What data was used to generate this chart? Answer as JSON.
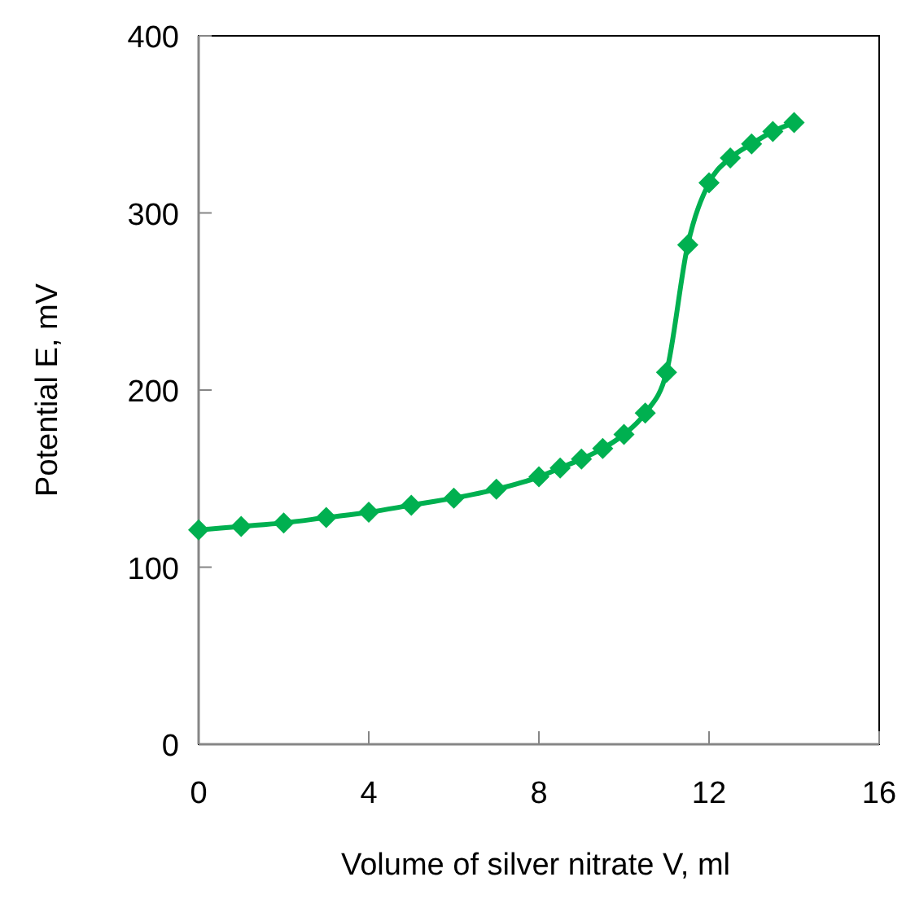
{
  "chart_data": {
    "type": "line",
    "xlabel": "Volume of silver nitrate V, ml",
    "ylabel": "Potential E, mV",
    "x": [
      0,
      1,
      2,
      3,
      4,
      5,
      6,
      7,
      8,
      8.5,
      9,
      9.5,
      10,
      10.5,
      11,
      11.5,
      12,
      12.5,
      13,
      13.5,
      14
    ],
    "series": [
      {
        "color": "#00b050",
        "values": [
          121,
          123,
          125,
          128,
          131,
          135,
          139,
          144,
          151,
          156,
          161,
          167,
          175,
          187,
          210,
          282,
          317,
          331,
          339,
          346,
          351
        ]
      }
    ],
    "xlim": [
      0,
      16
    ],
    "xticks": [
      0,
      4,
      8,
      12,
      16
    ],
    "ylim": [
      0,
      400
    ],
    "yticks": [
      0,
      100,
      200,
      300,
      400
    ],
    "marker": "diamond",
    "line_style": "solid",
    "grid": false
  }
}
